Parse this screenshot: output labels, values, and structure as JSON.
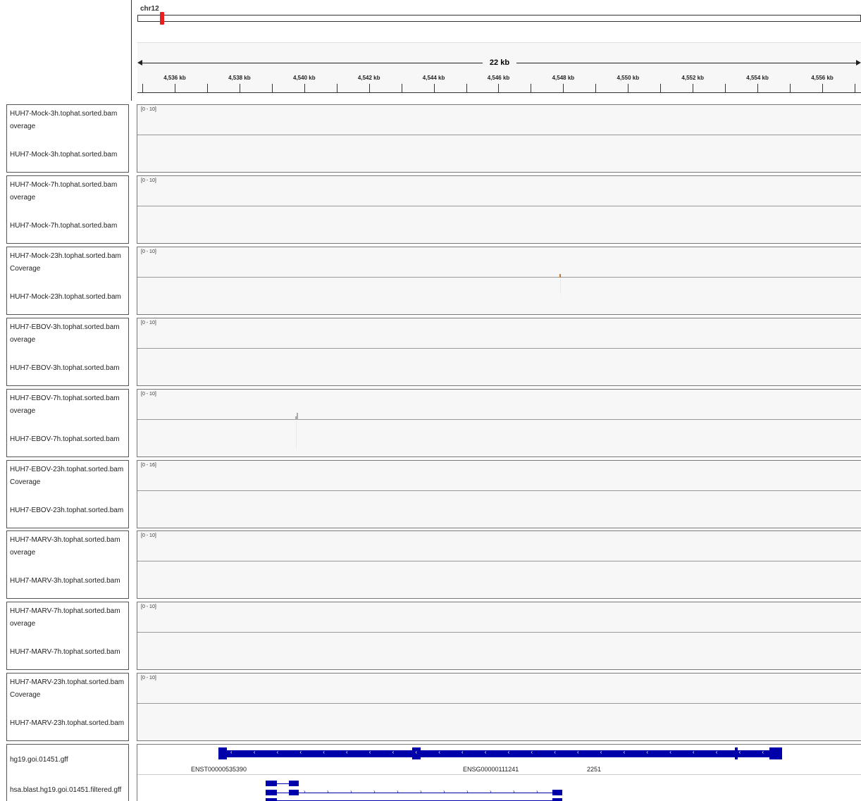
{
  "ruler": {
    "chromosome": "chr12",
    "span_label": "22 kb",
    "ticks": [
      "4,536 kb",
      "4,538 kb",
      "4,540 kb",
      "4,542 kb",
      "4,544 kb",
      "4,546 kb",
      "4,548 kb",
      "4,550 kb",
      "4,552 kb",
      "4,554 kb",
      "4,556 kb"
    ]
  },
  "tracks": [
    {
      "coverage_name": "HUH7-Mock-3h.tophat.sorted.bam overage",
      "name_line1": "HUH7-Mock-3h.tophat.sorted.bam",
      "name_line2": "overage",
      "alignment_name": "HUH7-Mock-3h.tophat.sorted.bam",
      "range": "[0 - 10]"
    },
    {
      "name_line1": "HUH7-Mock-7h.tophat.sorted.bam",
      "name_line2": "overage",
      "alignment_name": "HUH7-Mock-7h.tophat.sorted.bam",
      "range": "[0 - 10]"
    },
    {
      "name_line1": "HUH7-Mock-23h.tophat.sorted.bam",
      "name_line2": "Coverage",
      "alignment_name": "HUH7-Mock-23h.tophat.sorted.bam",
      "range": "[0 - 10]"
    },
    {
      "name_line1": "HUH7-EBOV-3h.tophat.sorted.bam",
      "name_line2": "overage",
      "alignment_name": "HUH7-EBOV-3h.tophat.sorted.bam",
      "range": "[0 - 10]"
    },
    {
      "name_line1": "HUH7-EBOV-7h.tophat.sorted.bam",
      "name_line2": "overage",
      "alignment_name": "HUH7-EBOV-7h.tophat.sorted.bam",
      "range": "[0 - 10]"
    },
    {
      "name_line1": "HUH7-EBOV-23h.tophat.sorted.bam",
      "name_line2": "Coverage",
      "alignment_name": "HUH7-EBOV-23h.tophat.sorted.bam",
      "range": "[0 - 16]"
    },
    {
      "name_line1": "HUH7-MARV-3h.tophat.sorted.bam",
      "name_line2": "overage",
      "alignment_name": "HUH7-MARV-3h.tophat.sorted.bam",
      "range": "[0 - 10]"
    },
    {
      "name_line1": "HUH7-MARV-7h.tophat.sorted.bam",
      "name_line2": "overage",
      "alignment_name": "HUH7-MARV-7h.tophat.sorted.bam",
      "range": "[0 - 10]"
    },
    {
      "name_line1": "HUH7-MARV-23h.tophat.sorted.bam",
      "name_line2": "Coverage",
      "alignment_name": "HUH7-MARV-23h.tophat.sorted.bam",
      "range": "[0 - 10]"
    }
  ],
  "annotation": {
    "gff_name": "hg19.goi.01451.gff",
    "blast_name": "hsa.blast.hg19.goi.01451.filtered.gff",
    "transcript_label": "ENST00000535390",
    "gene_label": "ENSG00000111241",
    "gene_number": "2251"
  },
  "colors": {
    "gene": "#0000aa",
    "coverage_mock": "#c07830",
    "coverage_ebov": "#aaaaaa",
    "ideogram_mark": "#e62020"
  }
}
